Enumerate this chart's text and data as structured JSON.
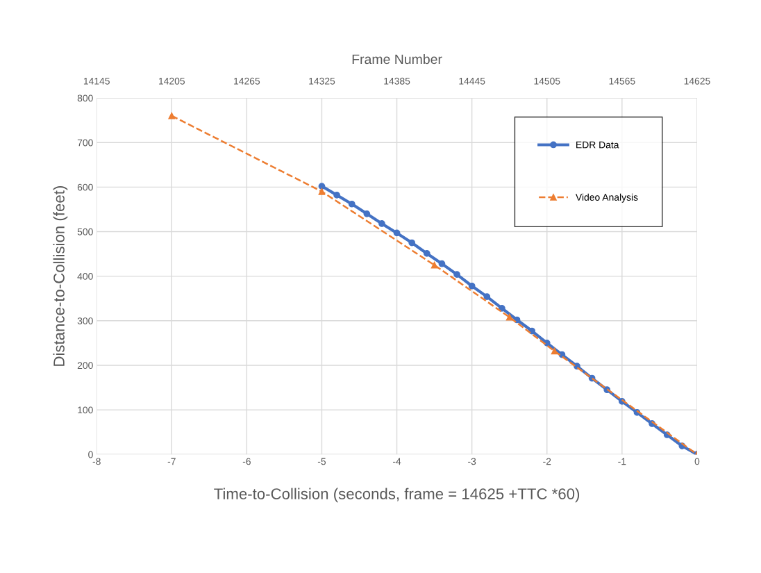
{
  "chart_data": {
    "type": "line",
    "xlabel": "Time-to-Collision (seconds, frame = 14625 +TTC *60)",
    "ylabel": "Distance-to-Collision (feet)",
    "x2label": "Frame Number",
    "xlim": [
      -8,
      0
    ],
    "xticks": [
      -8,
      -7,
      -6,
      -5,
      -4,
      -3,
      -2,
      -1,
      0
    ],
    "x2lim": [
      14145,
      14625
    ],
    "x2ticks": [
      14145,
      14205,
      14265,
      14325,
      14385,
      14445,
      14505,
      14565,
      14625
    ],
    "ylim": [
      0,
      800
    ],
    "yticks": [
      0,
      100,
      200,
      300,
      400,
      500,
      600,
      700,
      800
    ],
    "grid": true,
    "legend": "top right",
    "series": [
      {
        "name": "EDR Data",
        "color": "#4472c4",
        "marker": "circle",
        "line_style": "solid",
        "x": [
          -5,
          -4.8,
          -4.6,
          -4.4,
          -4.2,
          -4,
          -3.8,
          -3.6,
          -3.4,
          -3.2,
          -3,
          -2.8,
          -2.6,
          -2.4,
          -2.2,
          -2,
          -1.8,
          -1.6,
          -1.4,
          -1.2,
          -1,
          -0.8,
          -0.6,
          -0.4,
          -0.2,
          0
        ],
        "values": [
          602,
          582,
          562,
          540,
          518,
          497,
          475,
          451,
          428,
          404,
          378,
          354,
          328,
          302,
          277,
          250,
          224,
          198,
          171,
          145,
          119,
          94,
          69,
          44,
          19,
          0
        ]
      },
      {
        "name": "Video Analysis",
        "color": "#ed7d31",
        "marker": "triangle",
        "line_style": "dashed",
        "x": [
          -7,
          -5,
          -3.5,
          -2.5,
          -1.9,
          0
        ],
        "values": [
          760,
          590,
          425,
          308,
          232,
          0
        ]
      }
    ]
  }
}
